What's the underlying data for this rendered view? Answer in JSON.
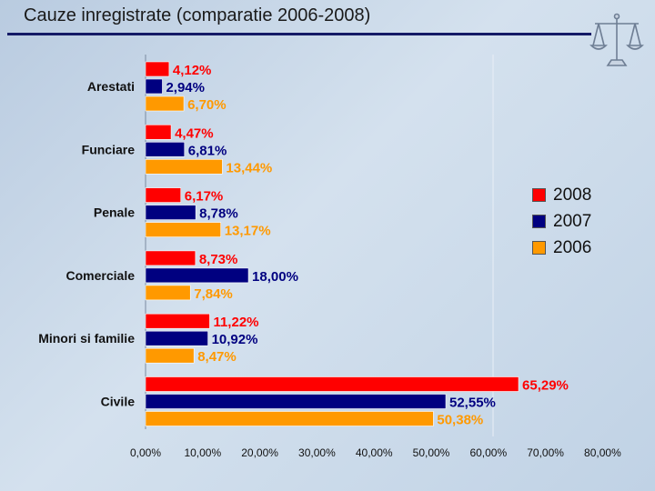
{
  "slide": {
    "title": "Cauze inregistrate (comparatie 2006-2008)"
  },
  "logo": {
    "icon": "scales-of-justice-icon"
  },
  "chart_data": {
    "type": "bar",
    "orientation": "horizontal",
    "title": "",
    "xlabel": "",
    "ylabel": "",
    "categories": [
      "Arestati",
      "Funciare",
      "Penale",
      "Comerciale",
      "Minori si familie",
      "Civile"
    ],
    "series": [
      {
        "name": "2008",
        "color": "#ff0000",
        "values": [
          4.12,
          4.47,
          6.17,
          8.73,
          11.22,
          65.29
        ],
        "labels": [
          "4,12%",
          "4,47%",
          "6,17%",
          "8,73%",
          "11,22%",
          "65,29%"
        ]
      },
      {
        "name": "2007",
        "color": "#000080",
        "values": [
          2.94,
          6.81,
          8.78,
          18.0,
          10.92,
          52.55
        ],
        "labels": [
          "2,94%",
          "6,81%",
          "8,78%",
          "18,00%",
          "10,92%",
          "52,55%"
        ]
      },
      {
        "name": "2006",
        "color": "#ff9900",
        "values": [
          6.7,
          13.44,
          13.17,
          7.84,
          8.47,
          50.38
        ],
        "labels": [
          "6,70%",
          "13,44%",
          "13,17%",
          "7,84%",
          "8,47%",
          "50,38%"
        ]
      }
    ],
    "xlim": [
      0,
      80
    ],
    "xticks": [
      0,
      10,
      20,
      30,
      40,
      50,
      60,
      70,
      80
    ],
    "xtick_labels": [
      "0,00%",
      "10,00%",
      "20,00%",
      "30,00%",
      "40,00%",
      "50,00%",
      "60,00%",
      "70,00%",
      "80,00%"
    ],
    "grid": false,
    "legend": {
      "position": "right",
      "order": [
        "2008",
        "2007",
        "2006"
      ]
    }
  }
}
